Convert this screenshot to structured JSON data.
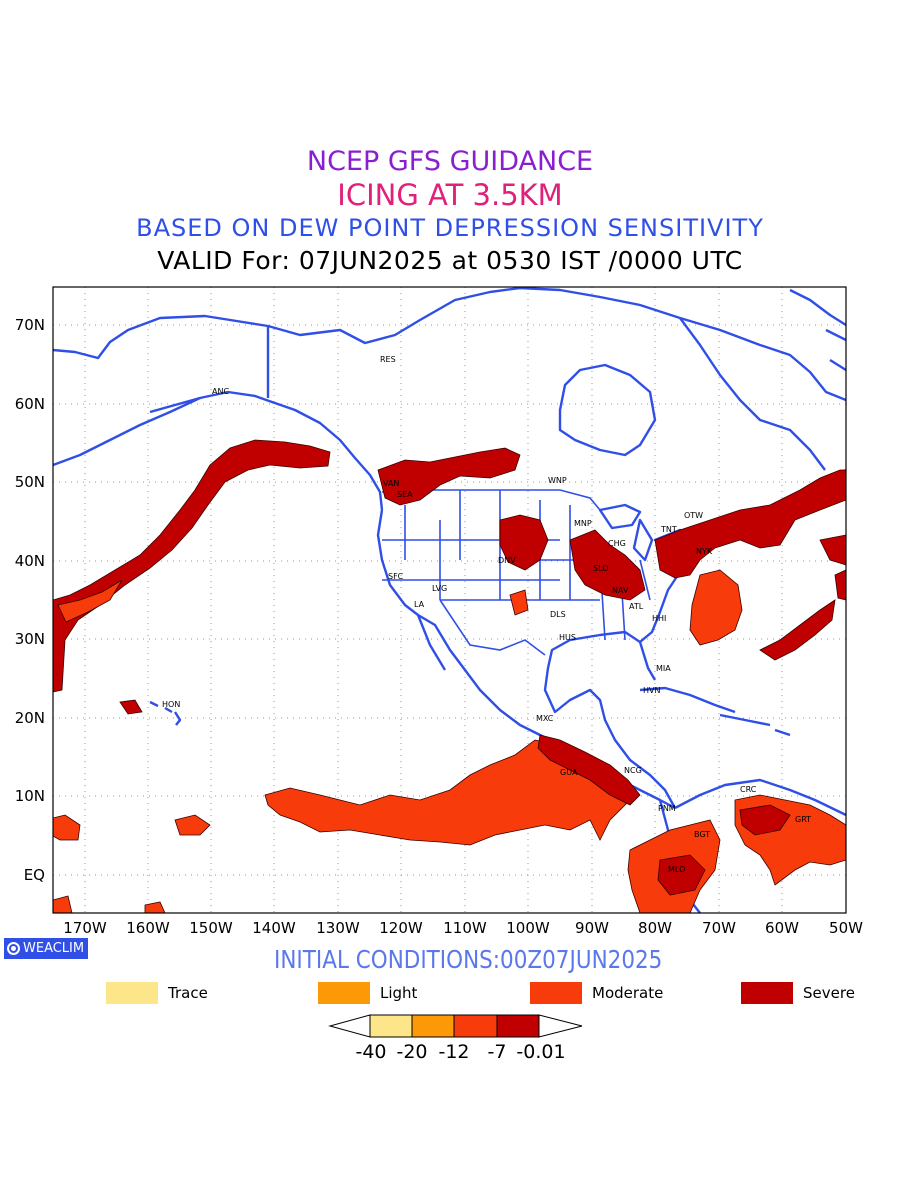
{
  "titles": {
    "line1": "NCEP GFS GUIDANCE",
    "line2": "ICING AT 3.5KM",
    "line3": "BASED ON DEW POINT DEPRESSION SENSITIVITY",
    "line4": "VALID For: 07JUN2025 at 0530 IST /0000 UTC"
  },
  "initial_conditions": "INITIAL CONDITIONS:00Z07JUN2025",
  "badge": {
    "label": "WEACLIM",
    "icon": "circle-logo-icon"
  },
  "map": {
    "lon_labels": [
      "170W",
      "160W",
      "150W",
      "140W",
      "130W",
      "120W",
      "110W",
      "100W",
      "90W",
      "80W",
      "70W",
      "60W",
      "50W"
    ],
    "lat_labels": [
      "70N",
      "60N",
      "50N",
      "40N",
      "30N",
      "20N",
      "10N",
      "EQ"
    ],
    "cities": [
      {
        "name": "ANC"
      },
      {
        "name": "RES"
      },
      {
        "name": "VAN"
      },
      {
        "name": "SEA"
      },
      {
        "name": "WNP"
      },
      {
        "name": "MNP"
      },
      {
        "name": "OTW"
      },
      {
        "name": "TNT"
      },
      {
        "name": "NYK"
      },
      {
        "name": "CHG"
      },
      {
        "name": "SLO"
      },
      {
        "name": "DNV"
      },
      {
        "name": "SFC"
      },
      {
        "name": "LVG"
      },
      {
        "name": "LA"
      },
      {
        "name": "DLS"
      },
      {
        "name": "NAV"
      },
      {
        "name": "ATL"
      },
      {
        "name": "HHI"
      },
      {
        "name": "HUS"
      },
      {
        "name": "MIA"
      },
      {
        "name": "HVN"
      },
      {
        "name": "HON"
      },
      {
        "name": "MXC"
      },
      {
        "name": "GUA"
      },
      {
        "name": "NCG"
      },
      {
        "name": "PNM"
      },
      {
        "name": "CRC"
      },
      {
        "name": "BGT"
      },
      {
        "name": "GRT"
      },
      {
        "name": "MLO"
      }
    ],
    "colors": {
      "trace": "#fde68a",
      "light": "#fb9a06",
      "moderate": "#f73b0b",
      "severe": "#c00000",
      "coastline": "#2f4fe6"
    }
  },
  "legend": {
    "items": [
      {
        "label": "Trace",
        "color": "#fde68a"
      },
      {
        "label": "Light",
        "color": "#fb9a06"
      },
      {
        "label": "Moderate",
        "color": "#f73b0b"
      },
      {
        "label": "Severe",
        "color": "#c00000"
      }
    ],
    "colorbar_ticks": [
      "-40",
      "-20",
      "-12",
      "-7",
      "-0.01"
    ]
  }
}
